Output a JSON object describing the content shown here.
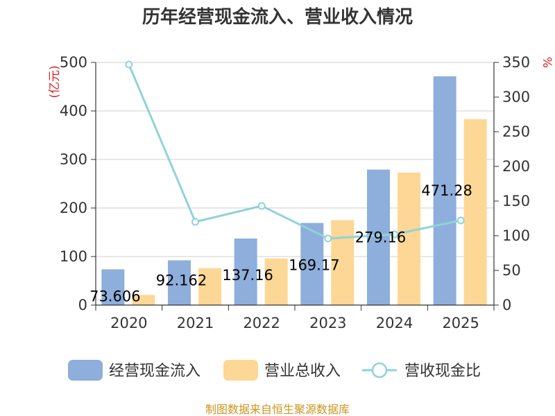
{
  "chart_data": {
    "type": "bar",
    "title": "历年经营现金流入、营业收入情况",
    "categories": [
      "2020",
      "2021",
      "2022",
      "2023",
      "2024",
      "2025"
    ],
    "series": [
      {
        "name": "经营现金流入",
        "type": "bar",
        "axis": "left",
        "color": "#8eaedb",
        "values": [
          73.606,
          92.162,
          137.16,
          169.17,
          279.16,
          471.28
        ],
        "labels": [
          "73.606",
          "92.162",
          "137.16",
          "169.17",
          "279.16",
          "471.28"
        ]
      },
      {
        "name": "营业总收入",
        "type": "bar",
        "axis": "left",
        "color": "#fdd795",
        "values": [
          21,
          76,
          96,
          175,
          273,
          383
        ]
      },
      {
        "name": "营收现金比",
        "type": "line",
        "axis": "right",
        "color": "#8fd3d8",
        "values": [
          347,
          120,
          143,
          96,
          102,
          122
        ]
      }
    ],
    "left_axis": {
      "unit": "(亿元)",
      "ylim": [
        0,
        500
      ],
      "ticks": [
        "0",
        "100",
        "200",
        "300",
        "400",
        "500"
      ]
    },
    "right_axis": {
      "unit": "%",
      "ylim": [
        0,
        350
      ],
      "ticks": [
        "0",
        "50",
        "100",
        "150",
        "200",
        "250",
        "300",
        "350"
      ]
    },
    "grid": true,
    "legend_position": "bottom"
  },
  "source": "制图数据来自恒生聚源数据库"
}
